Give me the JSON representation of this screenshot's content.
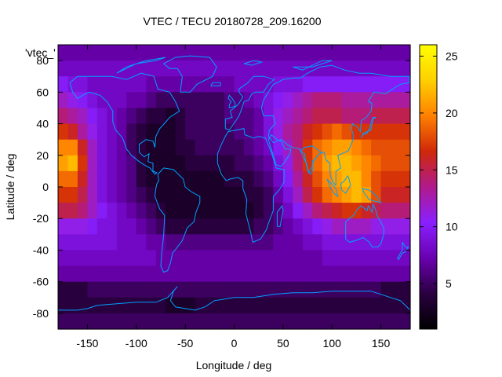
{
  "chart_data": {
    "type": "heatmap",
    "title": "VTEC / TECU 20180728_209.16200",
    "xlabel": "Longitude / deg",
    "ylabel": "Latitude / deg",
    "legend_key": "'vtec_'",
    "xlim": [
      -180,
      180
    ],
    "ylim": [
      -90,
      90
    ],
    "x_ticks": [
      -150,
      -100,
      -50,
      0,
      50,
      100,
      150
    ],
    "y_ticks": [
      80,
      60,
      40,
      20,
      0,
      -20,
      -40,
      -60,
      -80
    ],
    "colorbar": {
      "range": [
        1,
        26
      ],
      "ticks": [
        5,
        10,
        15,
        20,
        25
      ],
      "stops": [
        "#000000",
        "#2a0040",
        "#6a00b0",
        "#8a20ff",
        "#b01a8c",
        "#d0280a",
        "#ff8000",
        "#ffd000",
        "#ffff00"
      ]
    },
    "grid": {
      "lon_step": 10,
      "lat_step": 10,
      "lats": [
        85,
        75,
        65,
        55,
        45,
        35,
        25,
        15,
        5,
        -5,
        -15,
        -25,
        -35,
        -45,
        -55,
        -65,
        -75,
        -85
      ],
      "lons": [
        -175,
        -165,
        -155,
        -145,
        -135,
        -125,
        -115,
        -105,
        -95,
        -85,
        -75,
        -65,
        -55,
        -45,
        -35,
        -25,
        -15,
        -5,
        5,
        15,
        25,
        35,
        45,
        55,
        65,
        75,
        85,
        95,
        105,
        115,
        125,
        135,
        145,
        155,
        165,
        175
      ],
      "values": [
        [
          7,
          7,
          7,
          7,
          7,
          7,
          7,
          7,
          7,
          7,
          7,
          7,
          7,
          7,
          7,
          7,
          7,
          7,
          7,
          7,
          7,
          7,
          7,
          7,
          7,
          7,
          7,
          7,
          7,
          7,
          7,
          7,
          7,
          7,
          7,
          7
        ],
        [
          8,
          8,
          8,
          8,
          8,
          8,
          8,
          8,
          8,
          8,
          8,
          8,
          8,
          8,
          8,
          8,
          8,
          8,
          8,
          8,
          8,
          8,
          8,
          8,
          8,
          8,
          8,
          8,
          8,
          8,
          8,
          8,
          8,
          8,
          8,
          8
        ],
        [
          10,
          9,
          9,
          8,
          8,
          8,
          8,
          8,
          8,
          7,
          7,
          7,
          7,
          7,
          7,
          7,
          7,
          7,
          8,
          8,
          8,
          8,
          9,
          9,
          9,
          10,
          10,
          10,
          10,
          10,
          10,
          10,
          10,
          10,
          10,
          10
        ],
        [
          12,
          11,
          10,
          9,
          8,
          8,
          8,
          7,
          7,
          6,
          5,
          5,
          5,
          5,
          5,
          5,
          5,
          6,
          6,
          7,
          8,
          9,
          10,
          11,
          12,
          13,
          14,
          14,
          14,
          13,
          13,
          13,
          13,
          13,
          13,
          13
        ],
        [
          14,
          13,
          12,
          10,
          9,
          8,
          7,
          6,
          5,
          4,
          4,
          3,
          4,
          5,
          5,
          5,
          5,
          6,
          6,
          6,
          7,
          9,
          11,
          12,
          13,
          14,
          15,
          15,
          15,
          14,
          14,
          14,
          15,
          15,
          15,
          15
        ],
        [
          17,
          16,
          13,
          11,
          9,
          8,
          7,
          5,
          4,
          3,
          3,
          3,
          4,
          5,
          5,
          5,
          5,
          5,
          6,
          6,
          7,
          9,
          11,
          13,
          14,
          16,
          17,
          18,
          19,
          18,
          17,
          17,
          17,
          17,
          17,
          17
        ],
        [
          20,
          20,
          16,
          12,
          9,
          8,
          7,
          5,
          4,
          3,
          3,
          3,
          4,
          4,
          5,
          5,
          5,
          5,
          5,
          6,
          7,
          8,
          10,
          12,
          14,
          17,
          19,
          20,
          21,
          21,
          20,
          19,
          18,
          18,
          18,
          18
        ],
        [
          21,
          22,
          17,
          12,
          9,
          8,
          7,
          6,
          4,
          3,
          3,
          3,
          3,
          4,
          4,
          4,
          4,
          4,
          5,
          5,
          6,
          7,
          9,
          11,
          14,
          17,
          19,
          21,
          22,
          22,
          21,
          20,
          19,
          18,
          18,
          18
        ],
        [
          19,
          19,
          16,
          12,
          9,
          8,
          7,
          6,
          4,
          3,
          3,
          3,
          3,
          3,
          3,
          3,
          3,
          4,
          4,
          4,
          5,
          6,
          8,
          10,
          13,
          16,
          18,
          20,
          21,
          22,
          22,
          20,
          18,
          17,
          17,
          17
        ],
        [
          17,
          17,
          15,
          12,
          9,
          8,
          7,
          6,
          5,
          4,
          3,
          3,
          3,
          3,
          3,
          3,
          3,
          3,
          3,
          4,
          4,
          5,
          7,
          9,
          12,
          15,
          17,
          19,
          20,
          21,
          22,
          21,
          18,
          16,
          16,
          16
        ],
        [
          15,
          15,
          14,
          12,
          10,
          9,
          8,
          7,
          6,
          5,
          4,
          3,
          3,
          3,
          3,
          3,
          3,
          3,
          3,
          3,
          4,
          5,
          6,
          8,
          10,
          12,
          14,
          15,
          16,
          17,
          17,
          16,
          15,
          14,
          14,
          14
        ],
        [
          11,
          11,
          11,
          10,
          9,
          9,
          8,
          8,
          7,
          6,
          5,
          4,
          4,
          4,
          4,
          4,
          4,
          4,
          4,
          4,
          5,
          5,
          6,
          7,
          8,
          9,
          10,
          11,
          12,
          12,
          12,
          12,
          11,
          11,
          11,
          11
        ],
        [
          9,
          9,
          9,
          9,
          9,
          9,
          8,
          8,
          8,
          7,
          7,
          6,
          6,
          6,
          6,
          6,
          6,
          6,
          6,
          6,
          6,
          6,
          7,
          7,
          7,
          8,
          8,
          9,
          9,
          9,
          9,
          9,
          9,
          9,
          9,
          9
        ],
        [
          8,
          8,
          8,
          8,
          8,
          8,
          8,
          8,
          8,
          8,
          7,
          7,
          7,
          7,
          7,
          7,
          7,
          7,
          7,
          7,
          7,
          7,
          7,
          7,
          7,
          7,
          7,
          8,
          8,
          8,
          8,
          8,
          8,
          8,
          8,
          8
        ],
        [
          7,
          7,
          7,
          7,
          7,
          7,
          7,
          7,
          7,
          7,
          7,
          7,
          7,
          7,
          7,
          7,
          7,
          7,
          7,
          7,
          7,
          7,
          7,
          7,
          7,
          7,
          7,
          7,
          7,
          7,
          7,
          7,
          7,
          7,
          7,
          7
        ],
        [
          4,
          4,
          4,
          5,
          5,
          5,
          5,
          5,
          5,
          5,
          5,
          5,
          5,
          5,
          5,
          5,
          5,
          5,
          5,
          5,
          5,
          5,
          5,
          5,
          5,
          5,
          5,
          5,
          5,
          5,
          5,
          5,
          5,
          4,
          4,
          4
        ],
        [
          4,
          4,
          4,
          4,
          4,
          4,
          4,
          4,
          4,
          4,
          4,
          3,
          3,
          3,
          4,
          4,
          4,
          4,
          4,
          4,
          4,
          4,
          4,
          4,
          4,
          4,
          4,
          4,
          4,
          4,
          4,
          4,
          4,
          4,
          4,
          4
        ],
        [
          5,
          5,
          5,
          5,
          5,
          5,
          5,
          5,
          5,
          5,
          5,
          5,
          5,
          5,
          5,
          5,
          5,
          5,
          5,
          5,
          5,
          5,
          5,
          5,
          5,
          5,
          5,
          5,
          5,
          5,
          5,
          5,
          5,
          5,
          5,
          5
        ]
      ]
    },
    "features": [
      {
        "name": "coastline",
        "type": "outline",
        "color": "#00a0ff"
      }
    ]
  }
}
